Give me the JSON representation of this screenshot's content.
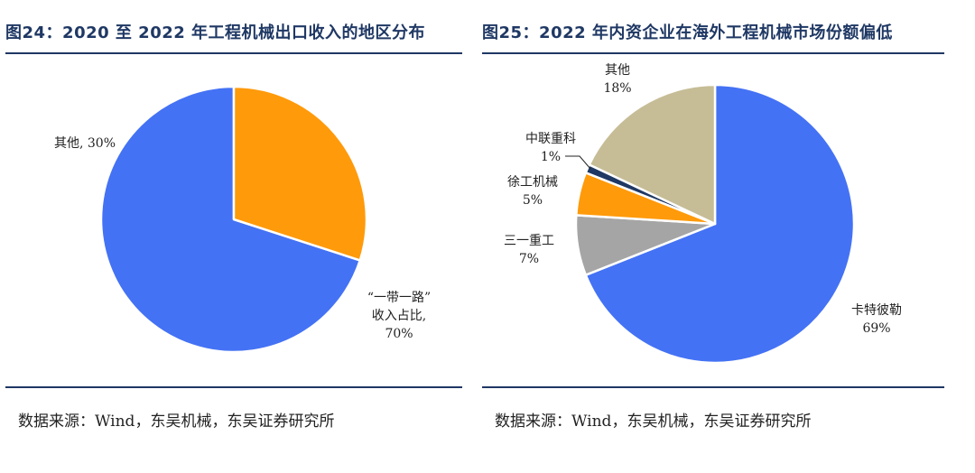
{
  "figures": [
    {
      "title": "图24：2020 至 2022 年工程机械出口收入的地区分布",
      "source": "数据来源：Wind，东吴机械，东吴证券研究所"
    },
    {
      "title": "图25：2022 年内资企业在海外工程机械市场份额偏低",
      "source": "数据来源：Wind，东吴机械，东吴证券研究所"
    }
  ],
  "chart_data": [
    {
      "type": "pie",
      "title": "图24：2020 至 2022 年工程机械出口收入的地区分布",
      "slices": [
        {
          "label_lines": [
            "“一带一路”",
            "收入占比,",
            "70%"
          ],
          "value": 70,
          "color": "#4472f4"
        },
        {
          "label_lines": [
            "其他, 30%"
          ],
          "value": 30,
          "color": "#ff9a0a"
        }
      ]
    },
    {
      "type": "pie",
      "title": "图25：2022 年内资企业在海外工程机械市场份额偏低",
      "slices": [
        {
          "label_lines": [
            "卡特彼勒",
            "69%"
          ],
          "value": 69,
          "color": "#4472f4"
        },
        {
          "label_lines": [
            "三一重工",
            "7%"
          ],
          "value": 7,
          "color": "#a5a5a5"
        },
        {
          "label_lines": [
            "徐工机械",
            "5%"
          ],
          "value": 5,
          "color": "#ff9a0a"
        },
        {
          "label_lines": [
            "中联重科",
            "1%"
          ],
          "value": 1,
          "color": "#1f3864"
        },
        {
          "label_lines": [
            "其他",
            "18%"
          ],
          "value": 18,
          "color": "#c6bd96"
        }
      ]
    }
  ]
}
